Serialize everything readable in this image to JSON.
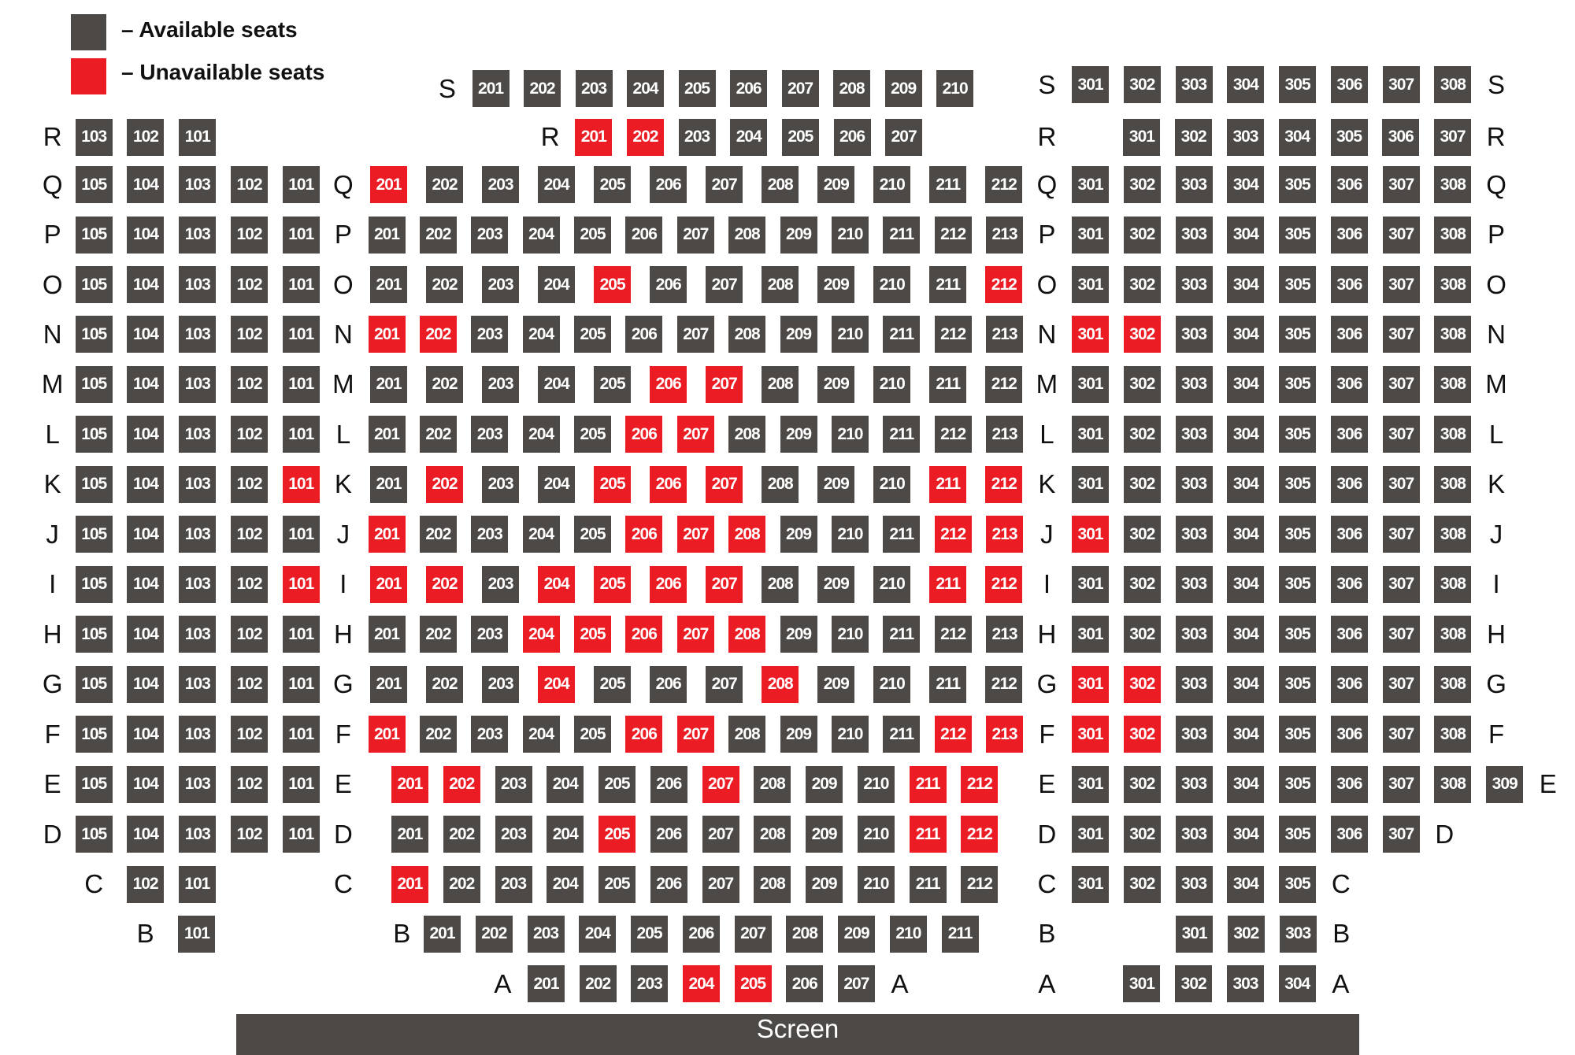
{
  "colors": {
    "available": "#4d4947",
    "unavailable": "#ec1c24"
  },
  "legend": {
    "available_label": "– Available seats",
    "unavailable_label": "– Unavailable seats"
  },
  "screen_label": "Screen",
  "sections": {
    "left": [
      {
        "row": "R",
        "seats": [
          "103",
          "102",
          "101"
        ],
        "unavailable": []
      },
      {
        "row": "Q",
        "seats": [
          "105",
          "104",
          "103",
          "102",
          "101"
        ],
        "unavailable": []
      },
      {
        "row": "P",
        "seats": [
          "105",
          "104",
          "103",
          "102",
          "101"
        ],
        "unavailable": []
      },
      {
        "row": "O",
        "seats": [
          "105",
          "104",
          "103",
          "102",
          "101"
        ],
        "unavailable": []
      },
      {
        "row": "N",
        "seats": [
          "105",
          "104",
          "103",
          "102",
          "101"
        ],
        "unavailable": []
      },
      {
        "row": "M",
        "seats": [
          "105",
          "104",
          "103",
          "102",
          "101"
        ],
        "unavailable": []
      },
      {
        "row": "L",
        "seats": [
          "105",
          "104",
          "103",
          "102",
          "101"
        ],
        "unavailable": []
      },
      {
        "row": "K",
        "seats": [
          "105",
          "104",
          "103",
          "102",
          "101"
        ],
        "unavailable": [
          "101"
        ]
      },
      {
        "row": "J",
        "seats": [
          "105",
          "104",
          "103",
          "102",
          "101"
        ],
        "unavailable": []
      },
      {
        "row": "I",
        "seats": [
          "105",
          "104",
          "103",
          "102",
          "101"
        ],
        "unavailable": [
          "101"
        ]
      },
      {
        "row": "H",
        "seats": [
          "105",
          "104",
          "103",
          "102",
          "101"
        ],
        "unavailable": []
      },
      {
        "row": "G",
        "seats": [
          "105",
          "104",
          "103",
          "102",
          "101"
        ],
        "unavailable": []
      },
      {
        "row": "F",
        "seats": [
          "105",
          "104",
          "103",
          "102",
          "101"
        ],
        "unavailable": []
      },
      {
        "row": "E",
        "seats": [
          "105",
          "104",
          "103",
          "102",
          "101"
        ],
        "unavailable": []
      },
      {
        "row": "D",
        "seats": [
          "105",
          "104",
          "103",
          "102",
          "101"
        ],
        "unavailable": []
      },
      {
        "row": "C",
        "seats": [
          "102",
          "101"
        ],
        "unavailable": []
      },
      {
        "row": "B",
        "seats": [
          "101"
        ],
        "unavailable": []
      }
    ],
    "center": [
      {
        "row": "S",
        "seats": [
          "201",
          "202",
          "203",
          "204",
          "205",
          "206",
          "207",
          "208",
          "209",
          "210"
        ],
        "unavailable": []
      },
      {
        "row": "R",
        "seats": [
          "201",
          "202",
          "203",
          "204",
          "205",
          "206",
          "207"
        ],
        "unavailable": [
          "201",
          "202"
        ]
      },
      {
        "row": "Q",
        "seats": [
          "201",
          "202",
          "203",
          "204",
          "205",
          "206",
          "207",
          "208",
          "209",
          "210",
          "211",
          "212"
        ],
        "unavailable": [
          "201"
        ]
      },
      {
        "row": "P",
        "seats": [
          "201",
          "202",
          "203",
          "204",
          "205",
          "206",
          "207",
          "208",
          "209",
          "210",
          "211",
          "212",
          "213"
        ],
        "unavailable": []
      },
      {
        "row": "O",
        "seats": [
          "201",
          "202",
          "203",
          "204",
          "205",
          "206",
          "207",
          "208",
          "209",
          "210",
          "211",
          "212"
        ],
        "unavailable": [
          "205",
          "212"
        ]
      },
      {
        "row": "N",
        "seats": [
          "201",
          "202",
          "203",
          "204",
          "205",
          "206",
          "207",
          "208",
          "209",
          "210",
          "211",
          "212",
          "213"
        ],
        "unavailable": [
          "201",
          "202"
        ]
      },
      {
        "row": "M",
        "seats": [
          "201",
          "202",
          "203",
          "204",
          "205",
          "206",
          "207",
          "208",
          "209",
          "210",
          "211",
          "212"
        ],
        "unavailable": [
          "206",
          "207"
        ]
      },
      {
        "row": "L",
        "seats": [
          "201",
          "202",
          "203",
          "204",
          "205",
          "206",
          "207",
          "208",
          "209",
          "210",
          "211",
          "212",
          "213"
        ],
        "unavailable": [
          "206",
          "207"
        ]
      },
      {
        "row": "K",
        "seats": [
          "201",
          "202",
          "203",
          "204",
          "205",
          "206",
          "207",
          "208",
          "209",
          "210",
          "211",
          "212"
        ],
        "unavailable": [
          "202",
          "205",
          "206",
          "207",
          "211",
          "212"
        ]
      },
      {
        "row": "J",
        "seats": [
          "201",
          "202",
          "203",
          "204",
          "205",
          "206",
          "207",
          "208",
          "209",
          "210",
          "211",
          "212",
          "213"
        ],
        "unavailable": [
          "201",
          "206",
          "207",
          "208",
          "212",
          "213"
        ]
      },
      {
        "row": "I",
        "seats": [
          "201",
          "202",
          "203",
          "204",
          "205",
          "206",
          "207",
          "208",
          "209",
          "210",
          "211",
          "212"
        ],
        "unavailable": [
          "201",
          "202",
          "204",
          "205",
          "206",
          "207",
          "211",
          "212"
        ]
      },
      {
        "row": "H",
        "seats": [
          "201",
          "202",
          "203",
          "204",
          "205",
          "206",
          "207",
          "208",
          "209",
          "210",
          "211",
          "212",
          "213"
        ],
        "unavailable": [
          "204",
          "205",
          "206",
          "207",
          "208"
        ]
      },
      {
        "row": "G",
        "seats": [
          "201",
          "202",
          "203",
          "204",
          "205",
          "206",
          "207",
          "208",
          "209",
          "210",
          "211",
          "212"
        ],
        "unavailable": [
          "204",
          "208"
        ]
      },
      {
        "row": "F",
        "seats": [
          "201",
          "202",
          "203",
          "204",
          "205",
          "206",
          "207",
          "208",
          "209",
          "210",
          "211",
          "212",
          "213"
        ],
        "unavailable": [
          "201",
          "206",
          "207",
          "212",
          "213"
        ]
      },
      {
        "row": "E",
        "seats": [
          "201",
          "202",
          "203",
          "204",
          "205",
          "206",
          "207",
          "208",
          "209",
          "210",
          "211",
          "212"
        ],
        "unavailable": [
          "201",
          "202",
          "207",
          "211",
          "212"
        ]
      },
      {
        "row": "D",
        "seats": [
          "201",
          "202",
          "203",
          "204",
          "205",
          "206",
          "207",
          "208",
          "209",
          "210",
          "211",
          "212"
        ],
        "unavailable": [
          "205",
          "211",
          "212"
        ]
      },
      {
        "row": "C",
        "seats": [
          "201",
          "202",
          "203",
          "204",
          "205",
          "206",
          "207",
          "208",
          "209",
          "210",
          "211",
          "212"
        ],
        "unavailable": [
          "201"
        ]
      },
      {
        "row": "B",
        "seats": [
          "201",
          "202",
          "203",
          "204",
          "205",
          "206",
          "207",
          "208",
          "209",
          "210",
          "211"
        ],
        "unavailable": []
      },
      {
        "row": "A",
        "seats": [
          "201",
          "202",
          "203",
          "204",
          "205",
          "206",
          "207"
        ],
        "unavailable": [
          "204",
          "205"
        ]
      }
    ],
    "right": [
      {
        "row": "S",
        "seats": [
          "301",
          "302",
          "303",
          "304",
          "305",
          "306",
          "307",
          "308"
        ],
        "unavailable": []
      },
      {
        "row": "R",
        "seats": [
          "301",
          "302",
          "303",
          "304",
          "305",
          "306",
          "307"
        ],
        "unavailable": []
      },
      {
        "row": "Q",
        "seats": [
          "301",
          "302",
          "303",
          "304",
          "305",
          "306",
          "307",
          "308"
        ],
        "unavailable": []
      },
      {
        "row": "P",
        "seats": [
          "301",
          "302",
          "303",
          "304",
          "305",
          "306",
          "307",
          "308"
        ],
        "unavailable": []
      },
      {
        "row": "O",
        "seats": [
          "301",
          "302",
          "303",
          "304",
          "305",
          "306",
          "307",
          "308"
        ],
        "unavailable": []
      },
      {
        "row": "N",
        "seats": [
          "301",
          "302",
          "303",
          "304",
          "305",
          "306",
          "307",
          "308"
        ],
        "unavailable": [
          "301",
          "302"
        ]
      },
      {
        "row": "M",
        "seats": [
          "301",
          "302",
          "303",
          "304",
          "305",
          "306",
          "307",
          "308"
        ],
        "unavailable": []
      },
      {
        "row": "L",
        "seats": [
          "301",
          "302",
          "303",
          "304",
          "305",
          "306",
          "307",
          "308"
        ],
        "unavailable": []
      },
      {
        "row": "K",
        "seats": [
          "301",
          "302",
          "303",
          "304",
          "305",
          "306",
          "307",
          "308"
        ],
        "unavailable": []
      },
      {
        "row": "J",
        "seats": [
          "301",
          "302",
          "303",
          "304",
          "305",
          "306",
          "307",
          "308"
        ],
        "unavailable": [
          "301"
        ]
      },
      {
        "row": "I",
        "seats": [
          "301",
          "302",
          "303",
          "304",
          "305",
          "306",
          "307",
          "308"
        ],
        "unavailable": []
      },
      {
        "row": "H",
        "seats": [
          "301",
          "302",
          "303",
          "304",
          "305",
          "306",
          "307",
          "308"
        ],
        "unavailable": []
      },
      {
        "row": "G",
        "seats": [
          "301",
          "302",
          "303",
          "304",
          "305",
          "306",
          "307",
          "308"
        ],
        "unavailable": [
          "301",
          "302"
        ]
      },
      {
        "row": "F",
        "seats": [
          "301",
          "302",
          "303",
          "304",
          "305",
          "306",
          "307",
          "308"
        ],
        "unavailable": [
          "301",
          "302"
        ]
      },
      {
        "row": "E",
        "seats": [
          "301",
          "302",
          "303",
          "304",
          "305",
          "306",
          "307",
          "308",
          "309"
        ],
        "unavailable": []
      },
      {
        "row": "D",
        "seats": [
          "301",
          "302",
          "303",
          "304",
          "305",
          "306",
          "307"
        ],
        "unavailable": []
      },
      {
        "row": "C",
        "seats": [
          "301",
          "302",
          "303",
          "304",
          "305"
        ],
        "unavailable": []
      },
      {
        "row": "B",
        "seats": [
          "301",
          "302",
          "303"
        ],
        "unavailable": []
      },
      {
        "row": "A",
        "seats": [
          "301",
          "302",
          "303",
          "304"
        ],
        "unavailable": []
      }
    ]
  }
}
